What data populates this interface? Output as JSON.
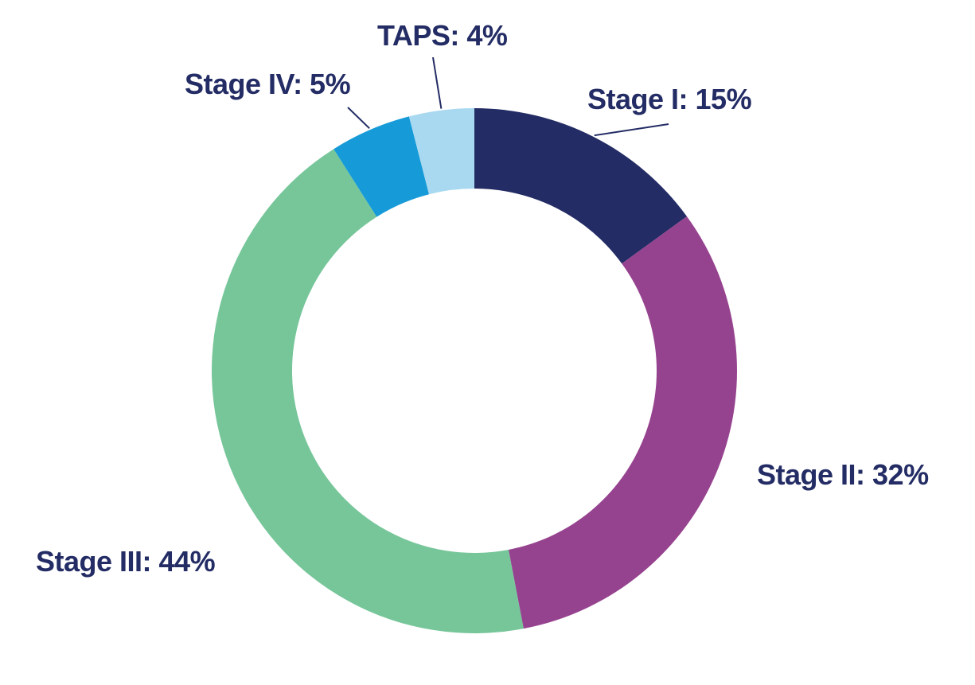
{
  "chart_data": {
    "type": "pie",
    "donut": true,
    "slices": [
      {
        "label": "Stage I",
        "value": 15,
        "text": "Stage I: 15%",
        "color": "#232c64"
      },
      {
        "label": "Stage II",
        "value": 32,
        "text": "Stage II: 32%",
        "color": "#96438f"
      },
      {
        "label": "Stage III",
        "value": 44,
        "text": "Stage III: 44%",
        "color": "#77c69a"
      },
      {
        "label": "Stage IV",
        "value": 5,
        "text": "Stage IV: 5%",
        "color": "#179bd8"
      },
      {
        "label": "TAPS",
        "value": 4,
        "text": "TAPS: 4%",
        "color": "#a9d9f1"
      }
    ],
    "label_color": "#232c64",
    "leader_color": "#232c64",
    "start": "12 o'clock",
    "direction": "clockwise"
  }
}
